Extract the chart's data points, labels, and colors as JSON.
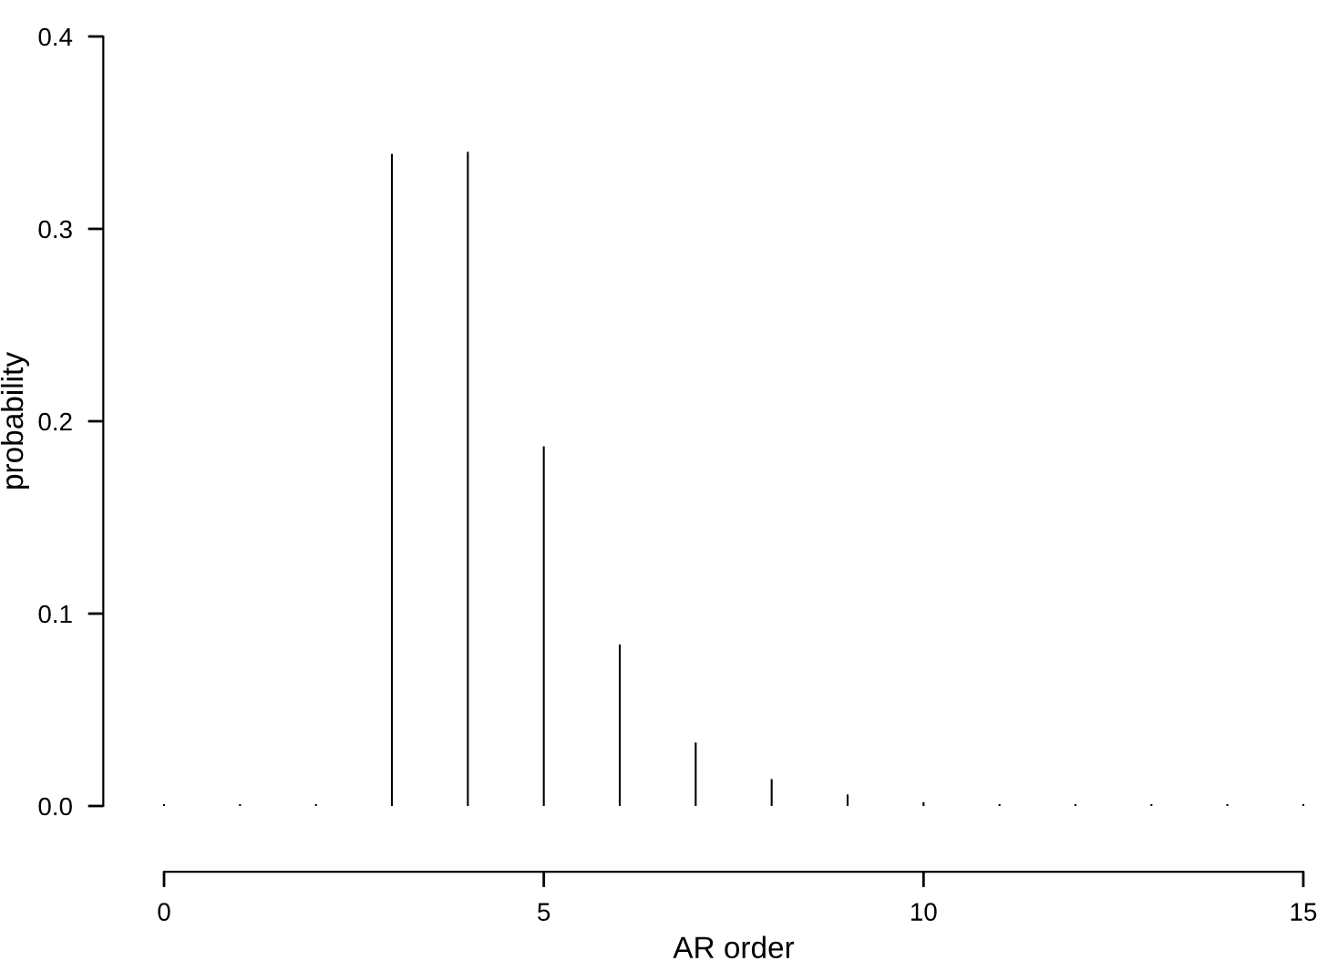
{
  "chart_data": {
    "type": "bar",
    "xlabel": "AR order",
    "ylabel": "probability",
    "color": "#000000",
    "x": [
      0,
      1,
      2,
      3,
      4,
      5,
      6,
      7,
      8,
      9,
      10,
      11,
      12,
      13,
      14,
      15
    ],
    "values": [
      0.001,
      0.001,
      0.001,
      0.339,
      0.34,
      0.187,
      0.084,
      0.033,
      0.014,
      0.006,
      0.002,
      0.001,
      0.001,
      0.001,
      0.001,
      0.001
    ],
    "xlim": [
      0,
      15
    ],
    "ylim": [
      0,
      0.4
    ],
    "xticks": [
      0,
      5,
      10,
      15
    ],
    "yticks": [
      {
        "value": 0,
        "label": "0.0"
      },
      {
        "value": 0.1,
        "label": "0.1"
      },
      {
        "value": 0.2,
        "label": "0.2"
      },
      {
        "value": 0.3,
        "label": "0.3"
      },
      {
        "value": 0.4,
        "label": "0.4"
      }
    ],
    "grid": false,
    "legend": false
  }
}
